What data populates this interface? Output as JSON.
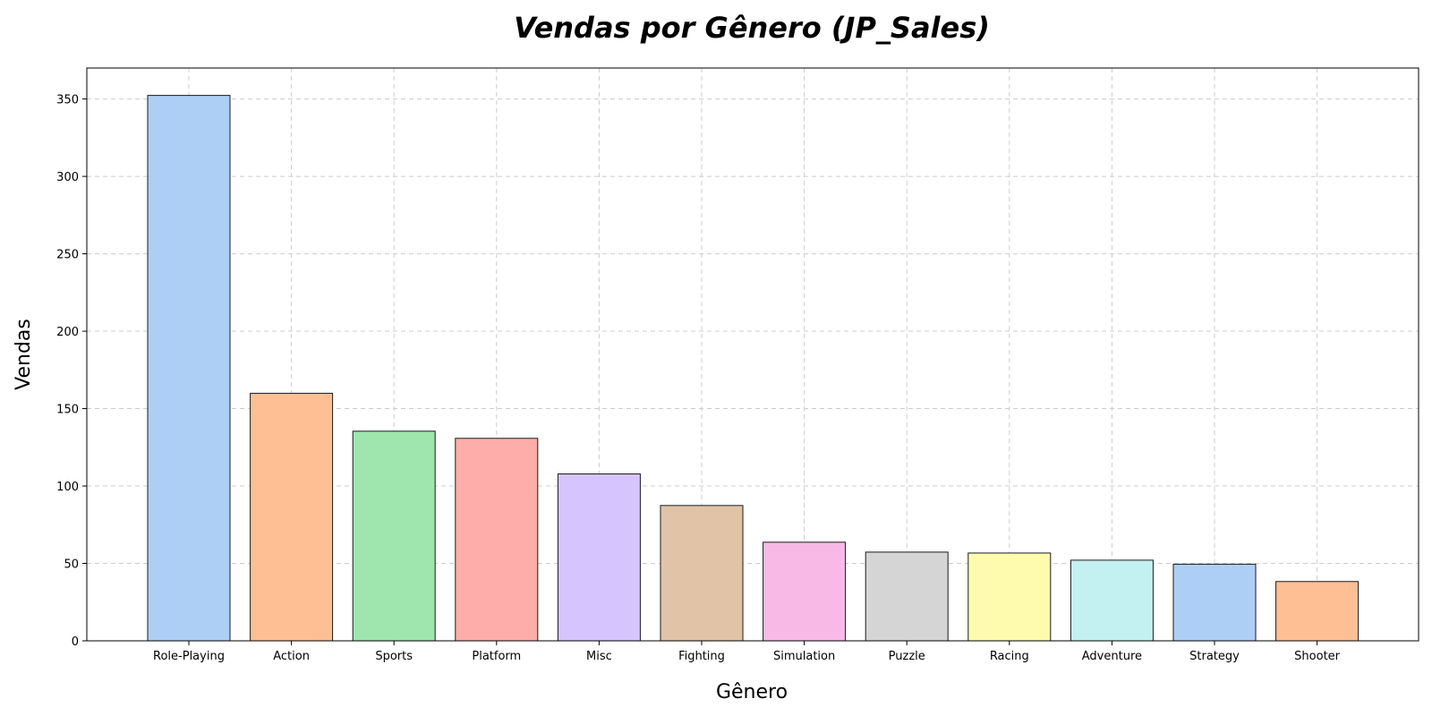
{
  "chart_data": {
    "type": "bar",
    "title": "Vendas por Gênero (JP_Sales)",
    "xlabel": "Gênero",
    "ylabel": "Vendas",
    "categories": [
      "Role-Playing",
      "Action",
      "Sports",
      "Platform",
      "Misc",
      "Fighting",
      "Simulation",
      "Puzzle",
      "Racing",
      "Adventure",
      "Strategy",
      "Shooter"
    ],
    "values": [
      352.3,
      159.9,
      135.4,
      130.8,
      107.8,
      87.4,
      63.7,
      57.3,
      56.7,
      52.1,
      49.5,
      38.3
    ],
    "colors": [
      "#aecff5",
      "#ffbf94",
      "#9ee6ad",
      "#ffadab",
      "#d6c4fe",
      "#e1c4a7",
      "#f9b9e6",
      "#d5d5d5",
      "#fefbae",
      "#c3f0f0",
      "#aecff5",
      "#ffbf94"
    ],
    "ylim": [
      0,
      370
    ],
    "yticks": [
      0,
      50,
      100,
      150,
      200,
      250,
      300,
      350
    ],
    "grid": true,
    "legend": false
  }
}
